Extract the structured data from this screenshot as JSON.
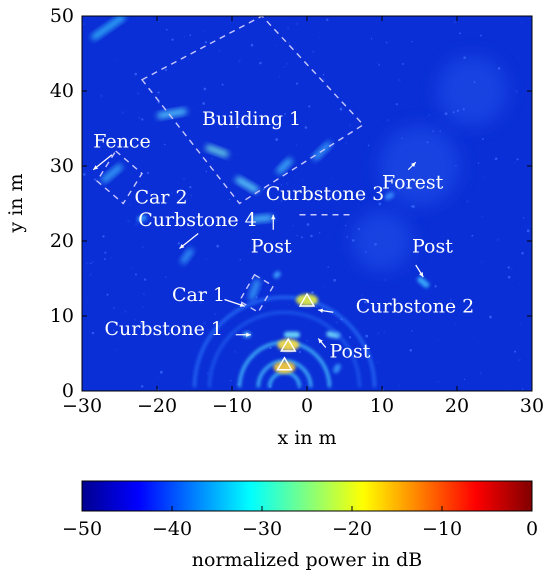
{
  "chart_data": {
    "type": "heatmap",
    "xlabel": "x in m",
    "ylabel": "y in m",
    "xlim": [
      -30,
      30
    ],
    "ylim": [
      0,
      50
    ],
    "xticks": [
      -30,
      -20,
      -10,
      0,
      10,
      20,
      30
    ],
    "xtick_labels": [
      "−30",
      "−20",
      "−10",
      "0",
      "10",
      "20",
      "30"
    ],
    "yticks": [
      0,
      10,
      20,
      30,
      40,
      50
    ],
    "ytick_labels": [
      "0",
      "10",
      "20",
      "30",
      "40",
      "50"
    ],
    "colorbar": {
      "label": "normalized power in dB",
      "range": [
        -50,
        0
      ],
      "ticks": [
        -50,
        -40,
        -30,
        -20,
        -10,
        0
      ],
      "tick_labels": [
        "−50",
        "−40",
        "−30",
        "−20",
        "−10",
        "0"
      ],
      "colormap": [
        "#00008f",
        "#0000ff",
        "#0080ff",
        "#00ffff",
        "#80ff80",
        "#ffff00",
        "#ff8000",
        "#ff0000",
        "#800000"
      ]
    },
    "background_color": "#0a2fd6",
    "annotations": [
      {
        "text": "Building 1",
        "x": -14,
        "y": 35.5
      },
      {
        "text": "Fence",
        "x": -28.5,
        "y": 32.5
      },
      {
        "text": "Car 2",
        "x": -23,
        "y": 25
      },
      {
        "text": "Curbstone 4",
        "x": -22.5,
        "y": 22
      },
      {
        "text": "Curbstone 3",
        "x": -5.5,
        "y": 25.5
      },
      {
        "text": "Forest",
        "x": 10,
        "y": 27
      },
      {
        "text": "Post",
        "x": -7.5,
        "y": 18.5
      },
      {
        "text": "Post",
        "x": 14,
        "y": 18.5
      },
      {
        "text": "Car 1",
        "x": -18,
        "y": 12
      },
      {
        "text": "Curbstone 2",
        "x": 6.5,
        "y": 10.5
      },
      {
        "text": "Curbstone 1",
        "x": -27,
        "y": 7.5
      },
      {
        "text": "Post",
        "x": 3,
        "y": 4.5
      }
    ],
    "markers": [
      {
        "x": 0,
        "y": 12,
        "shape": "triangle"
      },
      {
        "x": -2.5,
        "y": 6,
        "shape": "triangle"
      },
      {
        "x": -3,
        "y": 3.5,
        "shape": "triangle"
      }
    ]
  }
}
